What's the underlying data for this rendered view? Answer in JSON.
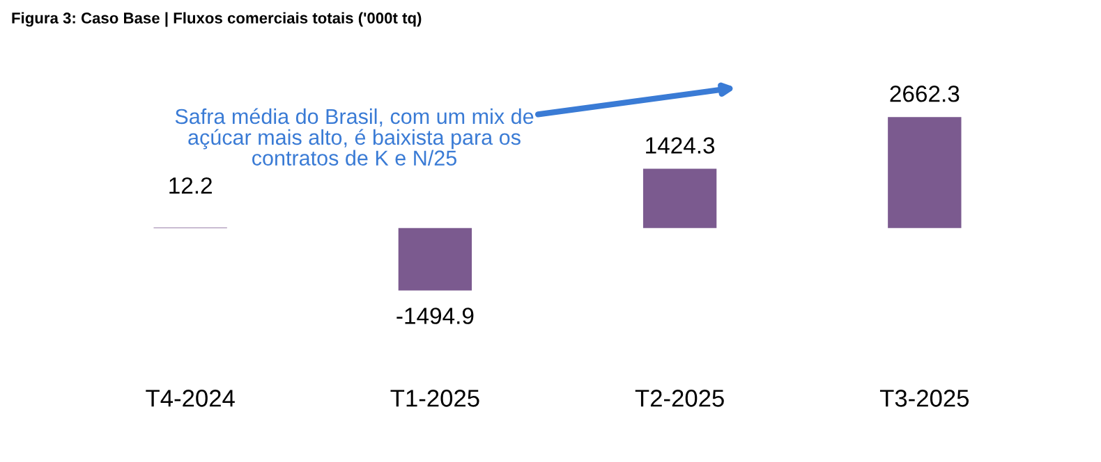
{
  "chart_data": {
    "type": "bar",
    "title": "Figura 3: Caso Base | Fluxos comerciais totais ('000t tq)",
    "categories": [
      "T4-2024",
      "T1-2025",
      "T2-2025",
      "T3-2025"
    ],
    "values": [
      12.2,
      -1494.9,
      1424.3,
      2662.3
    ],
    "color": "#7b5a8f",
    "data_labels": true,
    "grid": false,
    "legend": false,
    "annotations": [
      "Safra média do Brasil, com um mix de\naçúcar mais alto, é baixista para os\ncontratos de K e N/25"
    ]
  }
}
